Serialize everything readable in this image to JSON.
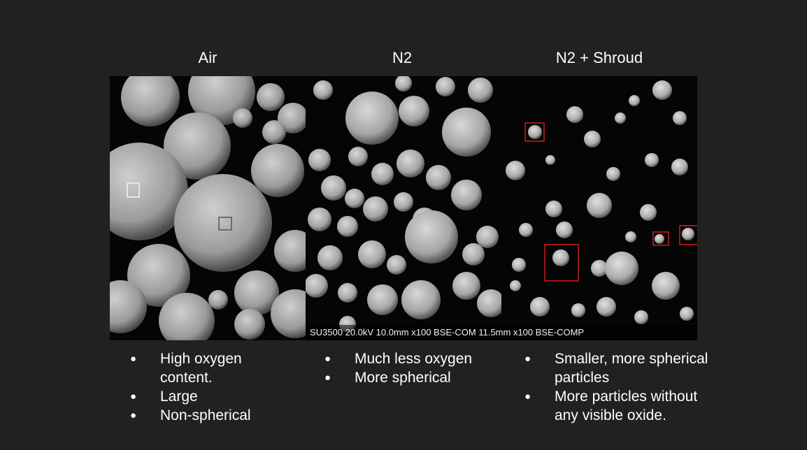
{
  "columns": [
    {
      "title": "Air",
      "bullets": [
        "High oxygen content.",
        "Large",
        "Non-spherical"
      ]
    },
    {
      "title": "N2",
      "bullets": [
        "Much less oxygen",
        "More spherical"
      ]
    },
    {
      "title": "N2 + Shroud",
      "bullets": [
        "Smaller, more spherical particles",
        "More particles without any visible oxide."
      ]
    }
  ],
  "micrograph_caption": "SU3500 20.0kV 10.0mm x100 BSE-COM 11.5mm x100 BSE-COMP",
  "colors": {
    "background": "#212121",
    "highlight_box": "#d01c1c",
    "marker_box": "#e6e6e6"
  }
}
